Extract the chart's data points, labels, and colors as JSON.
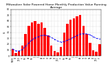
{
  "title": "Milwaukee Solar Powered Home Monthly Production Value Running Average",
  "months": [
    "N'09",
    "D",
    "J'10",
    "F",
    "M",
    "A",
    "M",
    "J",
    "J",
    "A",
    "S",
    "O",
    "N",
    "D",
    "J'11",
    "F",
    "M",
    "A",
    "M",
    "J",
    "J",
    "A",
    "S",
    "O",
    "N",
    "D",
    "J'12",
    "F"
  ],
  "bar_values": [
    12,
    5,
    8,
    18,
    38,
    52,
    58,
    60,
    55,
    58,
    48,
    35,
    18,
    8,
    6,
    15,
    40,
    55,
    62,
    65,
    68,
    70,
    52,
    38,
    22,
    10,
    7,
    20
  ],
  "running_avg": [
    12,
    8.5,
    8.3,
    10.8,
    16.4,
    22.2,
    27.6,
    31.1,
    32.8,
    35.2,
    35.7,
    34.5,
    31.8,
    28.6,
    25.4,
    23.6,
    24.4,
    26.8,
    29.6,
    32.3,
    35.0,
    37.6,
    38.2,
    37.8,
    36.2,
    33.3,
    30.2,
    28.9
  ],
  "bar_color": "#ff0000",
  "avg_color": "#0000ff",
  "background_color": "#ffffff",
  "grid_color": "#aaaaaa",
  "ylim": [
    0,
    80
  ],
  "yticks": [
    0,
    10,
    20,
    30,
    40,
    50,
    60,
    70,
    80
  ],
  "ytick_labels": [
    "0",
    "10",
    "20",
    "30",
    "40",
    "50",
    "60",
    "70",
    "80"
  ],
  "ylabel": "$",
  "title_fontsize": 3.2,
  "tick_fontsize": 2.2,
  "ylabel_fontsize": 3.0
}
